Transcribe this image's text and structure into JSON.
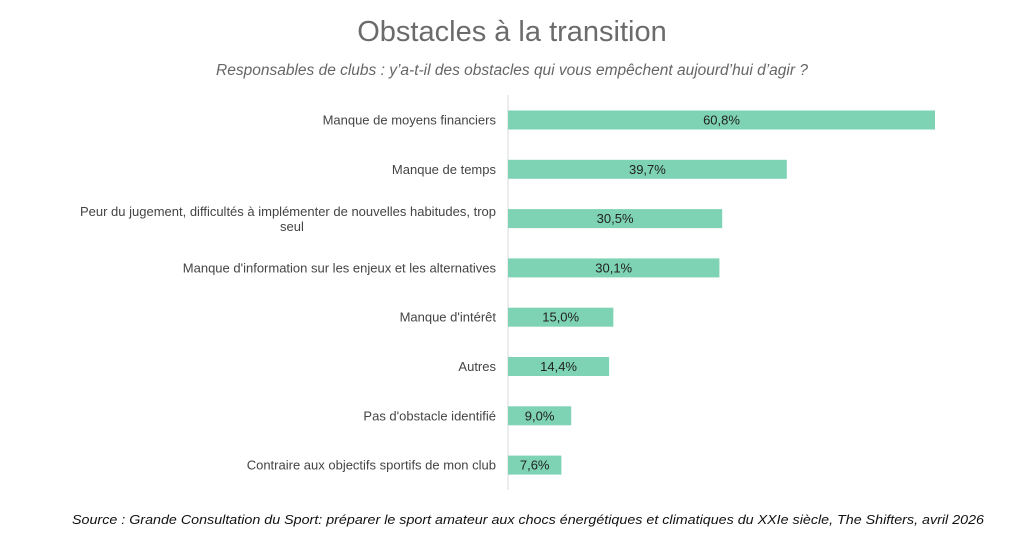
{
  "chart_data": {
    "type": "bar",
    "orientation": "horizontal",
    "title": "Obstacles à la transition",
    "subtitle": "Responsables de clubs : y’a-t-il des obstacles qui vous empêchent aujourd’hui d’agir ?",
    "categories": [
      "Manque de moyens financiers",
      "Manque de temps",
      "Peur du jugement, difficultés à implémenter de nouvelles habitudes, trop seul",
      "Manque d'information sur les enjeux et les alternatives",
      "Manque d'intérêt",
      "Autres",
      "Pas d'obstacle identifié",
      "Contraire aux objectifs sportifs de mon club"
    ],
    "values": [
      60.8,
      39.7,
      30.5,
      30.1,
      15.0,
      14.4,
      9.0,
      7.6
    ],
    "data_labels": [
      "60,8%",
      "39,7%",
      "30,5%",
      "30,1%",
      "15,0%",
      "14,4%",
      "9,0%",
      "7,6%"
    ],
    "xlabel": "",
    "ylabel": "",
    "xlim": [
      0,
      62
    ],
    "grid": false,
    "bar_color": "#7dd3b3",
    "source": "Source : Grande Consultation du Sport: préparer le sport amateur aux chocs énergétiques et climatiques du XXIe siècle, The Shifters, avril 2026"
  }
}
